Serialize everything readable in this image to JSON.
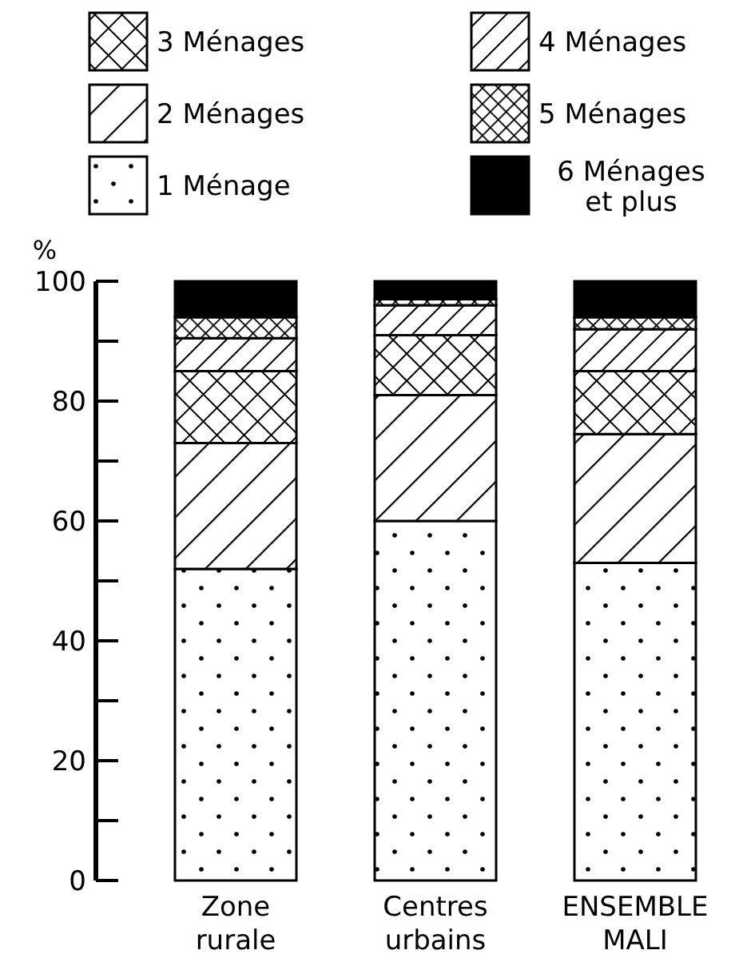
{
  "chart_data": {
    "type": "bar",
    "stacked": true,
    "ylabel": "%",
    "categories": [
      "Zone rurale",
      "Centres urbains",
      "ENSEMBLE MALI"
    ],
    "series": [
      {
        "name": "1 Ménage",
        "color": "#000000",
        "values": [
          52,
          60,
          53
        ]
      },
      {
        "name": "2 Ménages",
        "color": "#000000",
        "values": [
          21,
          21,
          21.5
        ]
      },
      {
        "name": "3 Ménages",
        "color": "#000000",
        "values": [
          12,
          10,
          10.5
        ]
      },
      {
        "name": "4 Ménages",
        "color": "#000000",
        "values": [
          5.5,
          5,
          7
        ]
      },
      {
        "name": "5 Ménages",
        "color": "#000000",
        "values": [
          3.5,
          1,
          2
        ]
      },
      {
        "name": "6 Ménages et plus",
        "color": "#000000",
        "values": [
          6,
          3,
          6
        ]
      }
    ],
    "ylim": [
      0,
      100
    ],
    "yticks": [
      0,
      {
        "value": 10,
        "label": null
      },
      20,
      {
        "value": 30,
        "label": null
      },
      40,
      {
        "value": 50,
        "label": null
      },
      60,
      {
        "value": 70,
        "label": null
      },
      80,
      {
        "value": 90,
        "label": null
      },
      100
    ],
    "grid": false,
    "legend": "top"
  }
}
